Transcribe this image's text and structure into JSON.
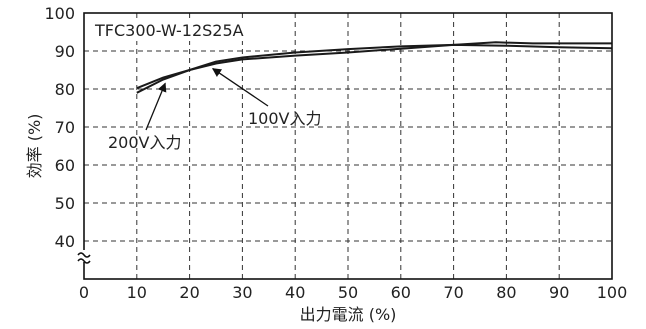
{
  "chart_data": {
    "type": "line",
    "title": "TFC300-W-12S25A",
    "xlabel": "出力電流 (%)",
    "ylabel": "効率 (%)",
    "xlim": [
      0,
      100
    ],
    "ylim": [
      30,
      100
    ],
    "y_axis_break": true,
    "grid": true,
    "x_ticks": [
      "0",
      "10",
      "20",
      "30",
      "40",
      "50",
      "60",
      "70",
      "80",
      "90",
      "100"
    ],
    "y_ticks": [
      "40",
      "50",
      "60",
      "70",
      "80",
      "90",
      "100"
    ],
    "series": [
      {
        "name": "100V入力",
        "x": [
          10,
          15,
          20,
          25,
          30,
          40,
          50,
          60,
          70,
          78,
          85,
          90,
          100
        ],
        "y": [
          79.0,
          82.5,
          85.0,
          86.7,
          87.8,
          88.8,
          89.6,
          90.6,
          91.6,
          92.3,
          92.0,
          92.0,
          92.0
        ]
      },
      {
        "name": "200V入力",
        "x": [
          10,
          15,
          20,
          25,
          30,
          40,
          50,
          60,
          70,
          80,
          90,
          100
        ],
        "y": [
          80.2,
          83.0,
          85.0,
          87.2,
          88.3,
          89.6,
          90.5,
          91.2,
          91.6,
          91.4,
          91.0,
          90.7
        ]
      }
    ],
    "annotations": [
      {
        "text": "100V入力",
        "target": [
          24,
          85.9
        ]
      },
      {
        "text": "200V入力",
        "target": [
          15,
          82.8
        ]
      }
    ]
  }
}
